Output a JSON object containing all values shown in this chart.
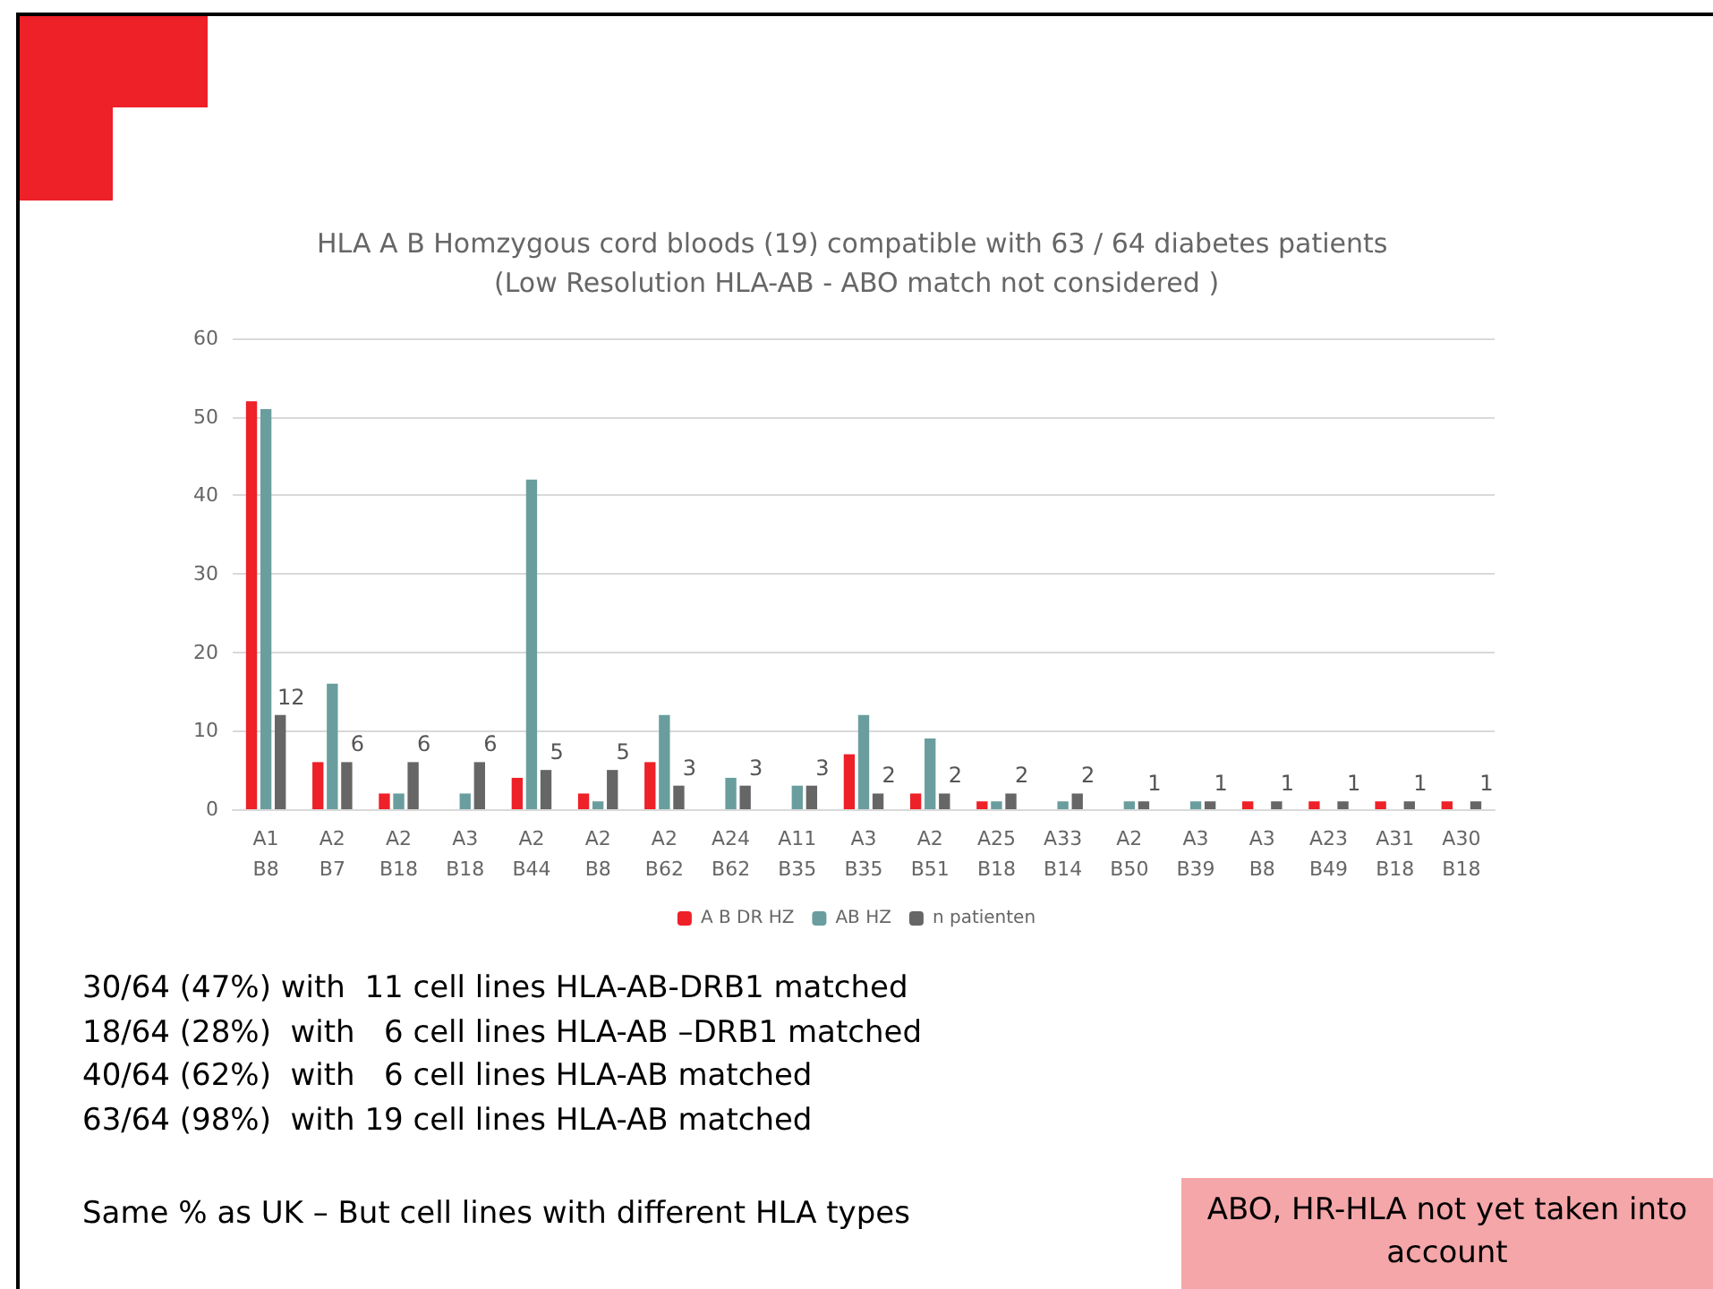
{
  "chart_data": {
    "type": "bar",
    "title": "HLA A B Homzygous cord bloods (19) compatible with 63 / 64 diabetes patients (Low Resolution HLA-AB - ABO match not considered )",
    "categories": [
      "A1\nB8",
      "A2\nB7",
      "A2\nB18",
      "A3\nB18",
      "A2\nB44",
      "A2\nB8",
      "A2\nB62",
      "A24\nB62",
      "A11\nB35",
      "A3\nB35",
      "A2\nB51",
      "A25\nB18",
      "A33\nB14",
      "A2\nB50",
      "A3\nB39",
      "A3\nB8",
      "A23\nB49",
      "A31\nB18",
      "A30\nB18"
    ],
    "series": [
      {
        "name": "A B DR HZ",
        "color": "#ee2028",
        "values": [
          52,
          6,
          2,
          null,
          4,
          2,
          6,
          null,
          null,
          7,
          2,
          1,
          null,
          null,
          null,
          1,
          1,
          1,
          1
        ]
      },
      {
        "name": "AB HZ",
        "color": "#6a9e9e",
        "values": [
          51,
          16,
          2,
          2,
          42,
          1,
          12,
          4,
          3,
          12,
          9,
          1,
          1,
          1,
          1,
          null,
          null,
          null,
          null
        ]
      },
      {
        "name": "n patienten",
        "color": "#666666",
        "values": [
          12,
          6,
          6,
          6,
          5,
          5,
          3,
          3,
          3,
          2,
          2,
          2,
          2,
          1,
          1,
          1,
          1,
          1,
          1
        ],
        "value_labels": [
          "12",
          "6",
          "6",
          "6",
          "5",
          "5",
          "3",
          "3",
          "3",
          "2",
          "2",
          "2",
          "2",
          "1",
          "1",
          "1",
          "1",
          "1",
          "1"
        ]
      }
    ],
    "ylim": [
      0,
      60
    ],
    "yticks": [
      0,
      10,
      20,
      30,
      40,
      50,
      60
    ],
    "grid": "y",
    "legend": "bottom",
    "annotations": [
      "30/64 (47%) with  11 cell lines HLA-AB-DRB1 matched",
      "18/64 (28%)  with   6 cell lines HLA-AB –DRB1 matched",
      "40/64 (62%)  with   6 cell lines HLA-AB matched",
      "63/64 (98%)  with 19 cell lines HLA-AB matched",
      "Same % as UK – But cell lines with different HLA types",
      "ABO, HR-HLA not yet taken into account"
    ]
  }
}
